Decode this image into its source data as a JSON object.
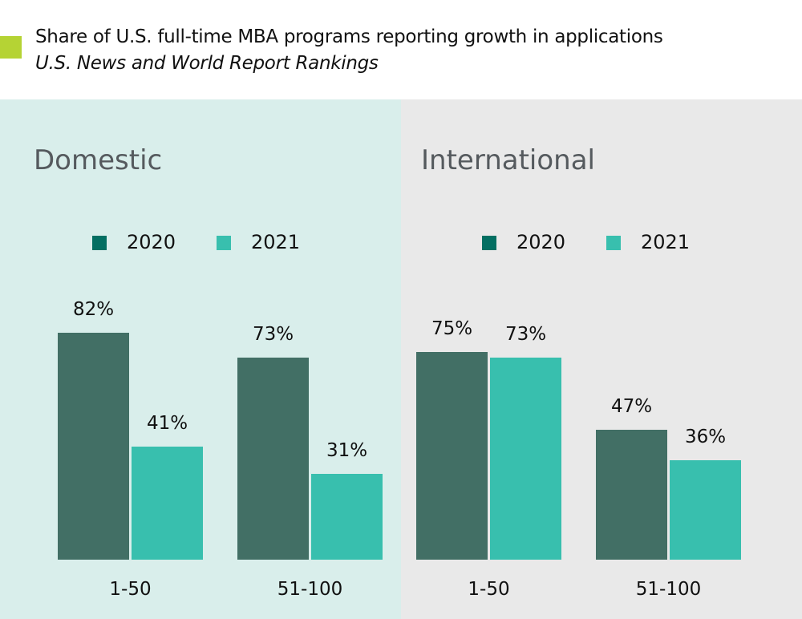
{
  "title": "Share of U.S. full-time MBA programs reporting growth in applications",
  "subtitle": "U.S. News and World Report Rankings",
  "colors": {
    "accent": "#b5d334",
    "series_2020": "#426f65",
    "series_2021": "#38bfae",
    "legend_2020": "#036f62",
    "panel_domestic": "#d9eeeb",
    "panel_international": "#e9e9e9"
  },
  "chart_data": [
    {
      "type": "bar",
      "title": "Domestic",
      "categories": [
        "1-50",
        "51-100"
      ],
      "series": [
        {
          "name": "2020",
          "values": [
            82,
            73
          ],
          "labels": [
            "82%",
            "73%"
          ]
        },
        {
          "name": "2021",
          "values": [
            41,
            31
          ],
          "labels": [
            "41%",
            "31%"
          ]
        }
      ],
      "ylim": [
        0,
        100
      ],
      "grid": false,
      "legend": "top"
    },
    {
      "type": "bar",
      "title": "International",
      "categories": [
        "1-50",
        "51-100"
      ],
      "series": [
        {
          "name": "2020",
          "values": [
            75,
            47
          ],
          "labels": [
            "75%",
            "47%"
          ]
        },
        {
          "name": "2021",
          "values": [
            73,
            36
          ],
          "labels": [
            "73%",
            "36%"
          ]
        }
      ],
      "ylim": [
        0,
        100
      ],
      "grid": false,
      "legend": "top"
    }
  ]
}
